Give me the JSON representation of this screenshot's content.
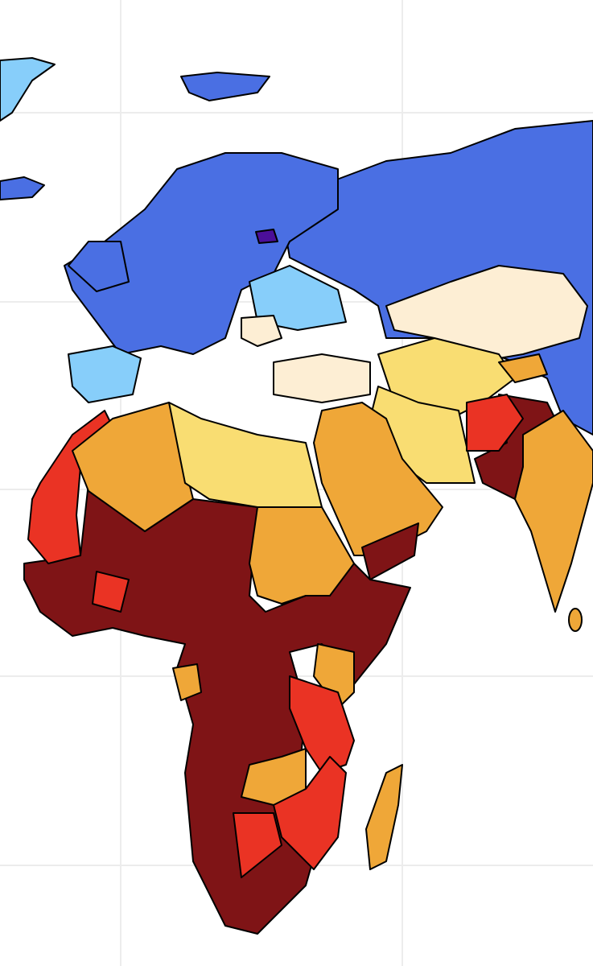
{
  "map": {
    "palette": [
      "#4a6fe3",
      "#87cefa",
      "#fdeed4",
      "#f9dd72",
      "#efa738",
      "#ea3324",
      "#7f1416",
      "#4b0f99"
    ]
  }
}
